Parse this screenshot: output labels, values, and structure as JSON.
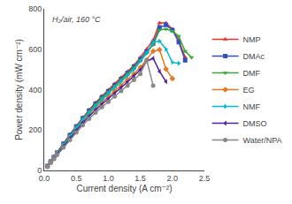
{
  "chart_data": {
    "type": "line",
    "xlabel": "Current density (A cm⁻²)",
    "ylabel": "Power density (mW cm⁻²)",
    "annotation": "H₂/air, 160 °C",
    "xlim": [
      0,
      2.5
    ],
    "ylim": [
      0,
      800
    ],
    "xticks": [
      {
        "value": 0.0,
        "label": "0.0"
      },
      0.5,
      {
        "value": 1.0,
        "label": "1.0"
      },
      1.5,
      {
        "value": 2.0,
        "label": "2.0"
      },
      2.5
    ],
    "yticks": [
      0,
      200,
      400,
      600,
      800
    ],
    "grid": false,
    "legend": "right",
    "series": [
      {
        "name": "NMP",
        "color": "#e83030",
        "marker": "triangle-up",
        "x": [
          0.05,
          0.1,
          0.15,
          0.2,
          0.3,
          0.4,
          0.5,
          0.6,
          0.7,
          0.8,
          0.9,
          1.0,
          1.1,
          1.2,
          1.3,
          1.4,
          1.5,
          1.6,
          1.7,
          1.8,
          1.9,
          2.0,
          2.1,
          2.2
        ],
        "values": [
          22,
          45,
          68,
          90,
          135,
          178,
          220,
          262,
          300,
          335,
          368,
          398,
          430,
          460,
          490,
          520,
          560,
          600,
          645,
          730,
          730,
          700,
          645,
          560
        ]
      },
      {
        "name": "DMAc",
        "color": "#3050c8",
        "marker": "square",
        "x": [
          0.05,
          0.1,
          0.15,
          0.2,
          0.3,
          0.4,
          0.5,
          0.6,
          0.7,
          0.8,
          0.9,
          1.0,
          1.1,
          1.2,
          1.3,
          1.4,
          1.5,
          1.6,
          1.7,
          1.8,
          1.9,
          2.0,
          2.1,
          2.2
        ],
        "values": [
          22,
          44,
          66,
          88,
          132,
          175,
          218,
          258,
          296,
          330,
          362,
          392,
          422,
          452,
          482,
          514,
          550,
          588,
          628,
          708,
          720,
          695,
          635,
          545
        ]
      },
      {
        "name": "DMF",
        "color": "#38a838",
        "marker": "triangle-down",
        "x": [
          0.05,
          0.1,
          0.15,
          0.2,
          0.3,
          0.4,
          0.5,
          0.6,
          0.7,
          0.8,
          0.9,
          1.0,
          1.1,
          1.2,
          1.3,
          1.4,
          1.5,
          1.6,
          1.7,
          1.8,
          1.9,
          2.0,
          2.1,
          2.2,
          2.3
        ],
        "values": [
          22,
          43,
          65,
          87,
          130,
          172,
          215,
          255,
          292,
          326,
          358,
          388,
          418,
          448,
          478,
          508,
          545,
          582,
          622,
          695,
          700,
          690,
          665,
          590,
          560
        ]
      },
      {
        "name": "EG",
        "color": "#e87820",
        "marker": "diamond",
        "x": [
          0.05,
          0.1,
          0.15,
          0.2,
          0.3,
          0.4,
          0.5,
          0.6,
          0.7,
          0.8,
          0.9,
          1.0,
          1.1,
          1.2,
          1.3,
          1.4,
          1.5,
          1.6,
          1.7,
          1.8,
          1.9,
          2.0
        ],
        "values": [
          20,
          41,
          62,
          83,
          124,
          164,
          204,
          242,
          276,
          308,
          338,
          366,
          393,
          420,
          449,
          478,
          510,
          548,
          590,
          598,
          502,
          455
        ]
      },
      {
        "name": "NMF",
        "color": "#00b8d0",
        "marker": "triangle-right",
        "x": [
          0.05,
          0.1,
          0.15,
          0.2,
          0.3,
          0.4,
          0.5,
          0.6,
          0.7,
          0.8,
          0.9,
          1.0,
          1.1,
          1.2,
          1.3,
          1.4,
          1.5,
          1.6,
          1.7,
          1.8,
          1.9,
          2.0,
          2.1
        ],
        "values": [
          21,
          42,
          64,
          85,
          127,
          168,
          210,
          249,
          285,
          318,
          350,
          380,
          410,
          440,
          470,
          500,
          540,
          580,
          635,
          640,
          600,
          535,
          530
        ]
      },
      {
        "name": "DMSO",
        "color": "#5020a0",
        "marker": "triangle-left",
        "x": [
          0.05,
          0.1,
          0.15,
          0.2,
          0.3,
          0.4,
          0.5,
          0.6,
          0.7,
          0.8,
          0.9,
          1.0,
          1.1,
          1.2,
          1.3,
          1.4,
          1.5,
          1.6,
          1.7,
          1.8,
          1.9
        ],
        "values": [
          20,
          40,
          60,
          80,
          120,
          159,
          198,
          235,
          268,
          299,
          328,
          355,
          382,
          410,
          438,
          468,
          498,
          540,
          555,
          490,
          440
        ]
      },
      {
        "name": "Water/NPA",
        "color": "#888888",
        "marker": "circle",
        "x": [
          0.05,
          0.1,
          0.15,
          0.2,
          0.3,
          0.4,
          0.5,
          0.6,
          0.7,
          0.8,
          0.9,
          1.0,
          1.1,
          1.2,
          1.3,
          1.4,
          1.5,
          1.6,
          1.7
        ],
        "values": [
          19,
          38,
          57,
          76,
          114,
          151,
          188,
          224,
          256,
          286,
          314,
          340,
          366,
          393,
          420,
          448,
          478,
          545,
          420
        ]
      }
    ]
  }
}
